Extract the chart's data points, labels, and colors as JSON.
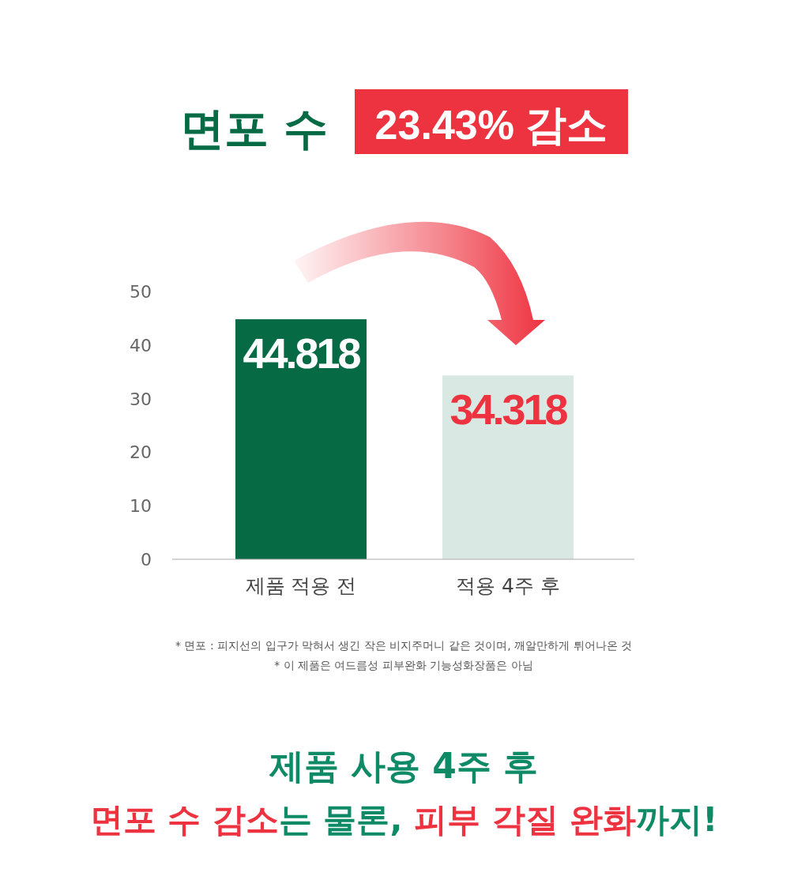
{
  "chart_data": {
    "type": "bar",
    "title": "면포 수",
    "subtitle": "23.43% 감소",
    "categories": [
      "제품 적용 전",
      "적용 4주 후"
    ],
    "values": [
      44.818,
      34.318
    ],
    "colors": [
      "#066b45",
      "#d9e8e2"
    ],
    "ylim": [
      0,
      50
    ],
    "yticks": [
      0,
      10,
      20,
      30,
      40,
      50
    ],
    "data_labels": true,
    "annotations": [
      "* 면포 : 피지선의 입구가 막혀서 생긴 작은 비지주머니 같은 것이며, 깨알만하게 튀어나온 것",
      "* 이 제품은 여드름성 피부완화 기능성화장품은 아님",
      "제품 사용 4주 후",
      "면포 수 감소",
      "는 물론, ",
      "피부 각질 완화",
      "까지!"
    ]
  }
}
